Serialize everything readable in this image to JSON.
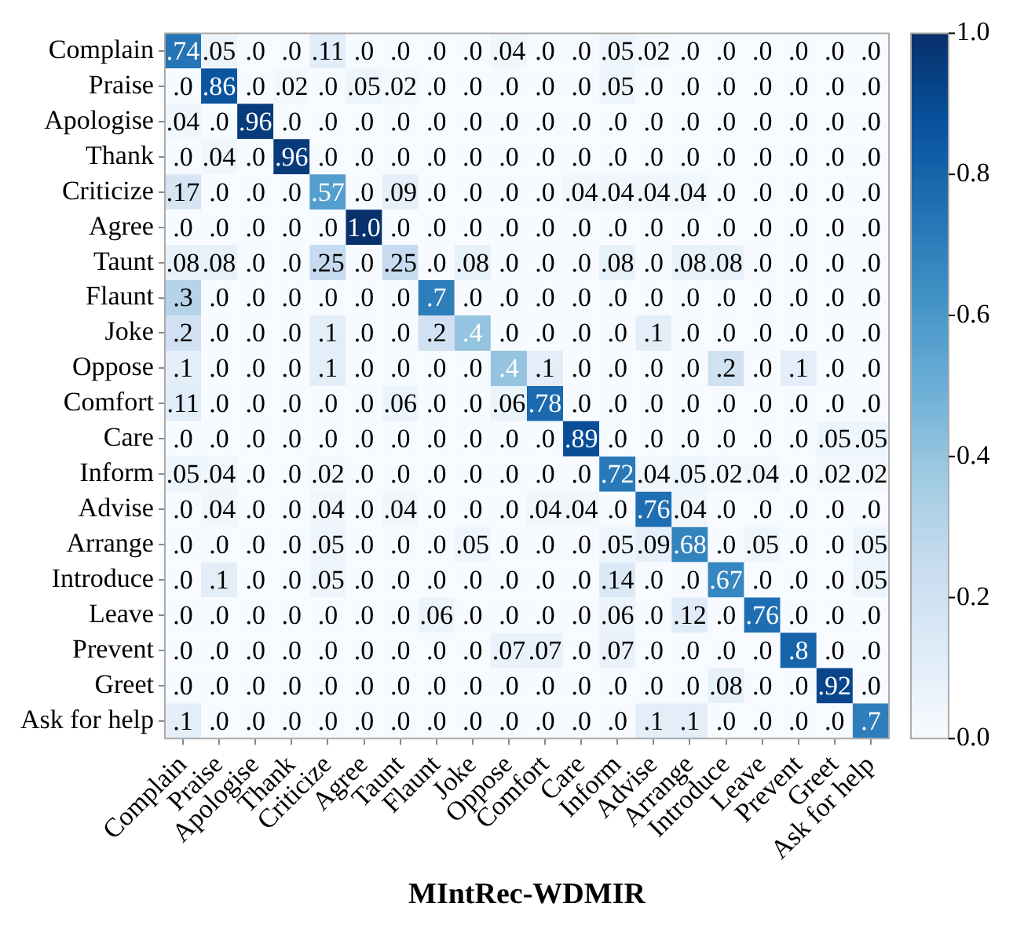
{
  "chart_data": {
    "type": "heatmap",
    "xlabel": "MIntRec-WDMIR",
    "categories": [
      "Complain",
      "Praise",
      "Apologise",
      "Thank",
      "Criticize",
      "Agree",
      "Taunt",
      "Flaunt",
      "Joke",
      "Oppose",
      "Comfort",
      "Care",
      "Inform",
      "Advise",
      "Arrange",
      "Introduce",
      "Leave",
      "Prevent",
      "Greet",
      "Ask for help"
    ],
    "y_categories": [
      "Complain",
      "Praise",
      "Apologise",
      "Thank",
      "Criticize",
      "Agree",
      "Taunt",
      "Flaunt",
      "Joke",
      "Oppose",
      "Comfort",
      "Care",
      "Inform",
      "Advise",
      "Arrange",
      "Introduce",
      "Leave",
      "Prevent",
      "Greet",
      "Ask for help"
    ],
    "cells": [
      [
        0.74,
        0.05,
        0,
        0,
        0.11,
        0,
        0,
        0,
        0,
        0.04,
        0,
        0,
        0.05,
        0.02,
        0,
        0,
        0,
        0,
        0,
        0
      ],
      [
        0,
        0.86,
        0,
        0.02,
        0,
        0.05,
        0.02,
        0,
        0,
        0,
        0,
        0,
        0.05,
        0,
        0,
        0,
        0,
        0,
        0,
        0
      ],
      [
        0.04,
        0,
        0.96,
        0,
        0,
        0,
        0,
        0,
        0,
        0,
        0,
        0,
        0,
        0,
        0,
        0,
        0,
        0,
        0,
        0
      ],
      [
        0,
        0.04,
        0,
        0.96,
        0,
        0,
        0,
        0,
        0,
        0,
        0,
        0,
        0,
        0,
        0,
        0,
        0,
        0,
        0,
        0
      ],
      [
        0.17,
        0,
        0,
        0,
        0.57,
        0,
        0.09,
        0,
        0,
        0,
        0,
        0.04,
        0.04,
        0.04,
        0.04,
        0,
        0,
        0,
        0,
        0
      ],
      [
        0,
        0,
        0,
        0,
        0,
        1.0,
        0,
        0,
        0,
        0,
        0,
        0,
        0,
        0,
        0,
        0,
        0,
        0,
        0,
        0
      ],
      [
        0.08,
        0.08,
        0,
        0,
        0.25,
        0,
        0.25,
        0,
        0.08,
        0,
        0,
        0,
        0.08,
        0,
        0.08,
        0.08,
        0,
        0,
        0,
        0
      ],
      [
        0.3,
        0,
        0,
        0,
        0,
        0,
        0,
        0.7,
        0,
        0,
        0,
        0,
        0,
        0,
        0,
        0,
        0,
        0,
        0,
        0
      ],
      [
        0.2,
        0,
        0,
        0,
        0.1,
        0,
        0,
        0.2,
        0.4,
        0,
        0,
        0,
        0,
        0.1,
        0,
        0,
        0,
        0,
        0,
        0
      ],
      [
        0.1,
        0,
        0,
        0,
        0.1,
        0,
        0,
        0,
        0,
        0.4,
        0.1,
        0,
        0,
        0,
        0,
        0.2,
        0,
        0.1,
        0,
        0
      ],
      [
        0.11,
        0,
        0,
        0,
        0,
        0,
        0.06,
        0,
        0,
        0.06,
        0.78,
        0,
        0,
        0,
        0,
        0,
        0,
        0,
        0,
        0
      ],
      [
        0,
        0,
        0,
        0,
        0,
        0,
        0,
        0,
        0,
        0,
        0,
        0.89,
        0,
        0,
        0,
        0,
        0,
        0,
        0.05,
        0.05
      ],
      [
        0.05,
        0.04,
        0,
        0,
        0.02,
        0,
        0,
        0,
        0,
        0,
        0,
        0,
        0.72,
        0.04,
        0.05,
        0.02,
        0.04,
        0,
        0.02,
        0.02
      ],
      [
        0,
        0.04,
        0,
        0,
        0.04,
        0,
        0.04,
        0,
        0,
        0,
        0.04,
        0.04,
        0,
        0.76,
        0.04,
        0,
        0,
        0,
        0,
        0
      ],
      [
        0,
        0,
        0,
        0,
        0.05,
        0,
        0,
        0,
        0.05,
        0,
        0,
        0,
        0.05,
        0.09,
        0.68,
        0,
        0.05,
        0,
        0,
        0.05
      ],
      [
        0,
        0.1,
        0,
        0,
        0.05,
        0,
        0,
        0,
        0,
        0,
        0,
        0,
        0.14,
        0,
        0,
        0.67,
        0,
        0,
        0,
        0.05
      ],
      [
        0,
        0,
        0,
        0,
        0,
        0,
        0,
        0.06,
        0,
        0,
        0,
        0,
        0.06,
        0,
        0.12,
        0,
        0.76,
        0,
        0,
        0
      ],
      [
        0,
        0,
        0,
        0,
        0,
        0,
        0,
        0,
        0,
        0.07,
        0.07,
        0,
        0.07,
        0,
        0,
        0,
        0,
        0.8,
        0,
        0
      ],
      [
        0,
        0,
        0,
        0,
        0,
        0,
        0,
        0,
        0,
        0,
        0,
        0,
        0,
        0,
        0,
        0.08,
        0,
        0,
        0.92,
        0
      ],
      [
        0.1,
        0,
        0,
        0,
        0,
        0,
        0,
        0,
        0,
        0,
        0,
        0,
        0,
        0.1,
        0.1,
        0,
        0,
        0,
        0,
        0.7
      ]
    ],
    "cell_labels": [
      [
        ".74",
        ".05",
        ".0",
        ".0",
        ".11",
        ".0",
        ".0",
        ".0",
        ".0",
        ".04",
        ".0",
        ".0",
        ".05",
        ".02",
        ".0",
        ".0",
        ".0",
        ".0",
        ".0",
        ".0"
      ],
      [
        ".0",
        ".86",
        ".0",
        ".02",
        ".0",
        ".05",
        ".02",
        ".0",
        ".0",
        ".0",
        ".0",
        ".0",
        ".05",
        ".0",
        ".0",
        ".0",
        ".0",
        ".0",
        ".0",
        ".0"
      ],
      [
        ".04",
        ".0",
        ".96",
        ".0",
        ".0",
        ".0",
        ".0",
        ".0",
        ".0",
        ".0",
        ".0",
        ".0",
        ".0",
        ".0",
        ".0",
        ".0",
        ".0",
        ".0",
        ".0",
        ".0"
      ],
      [
        ".0",
        ".04",
        ".0",
        ".96",
        ".0",
        ".0",
        ".0",
        ".0",
        ".0",
        ".0",
        ".0",
        ".0",
        ".0",
        ".0",
        ".0",
        ".0",
        ".0",
        ".0",
        ".0",
        ".0"
      ],
      [
        ".17",
        ".0",
        ".0",
        ".0",
        ".57",
        ".0",
        ".09",
        ".0",
        ".0",
        ".0",
        ".0",
        ".04",
        ".04",
        ".04",
        ".04",
        ".0",
        ".0",
        ".0",
        ".0",
        ".0"
      ],
      [
        ".0",
        ".0",
        ".0",
        ".0",
        ".0",
        "1.0",
        ".0",
        ".0",
        ".0",
        ".0",
        ".0",
        ".0",
        ".0",
        ".0",
        ".0",
        ".0",
        ".0",
        ".0",
        ".0",
        ".0"
      ],
      [
        ".08",
        ".08",
        ".0",
        ".0",
        ".25",
        ".0",
        ".25",
        ".0",
        ".08",
        ".0",
        ".0",
        ".0",
        ".08",
        ".0",
        ".08",
        ".08",
        ".0",
        ".0",
        ".0",
        ".0"
      ],
      [
        ".3",
        ".0",
        ".0",
        ".0",
        ".0",
        ".0",
        ".0",
        ".7",
        ".0",
        ".0",
        ".0",
        ".0",
        ".0",
        ".0",
        ".0",
        ".0",
        ".0",
        ".0",
        ".0",
        ".0"
      ],
      [
        ".2",
        ".0",
        ".0",
        ".0",
        ".1",
        ".0",
        ".0",
        ".2",
        ".4",
        ".0",
        ".0",
        ".0",
        ".0",
        ".1",
        ".0",
        ".0",
        ".0",
        ".0",
        ".0",
        ".0"
      ],
      [
        ".1",
        ".0",
        ".0",
        ".0",
        ".1",
        ".0",
        ".0",
        ".0",
        ".0",
        ".4",
        ".1",
        ".0",
        ".0",
        ".0",
        ".0",
        ".2",
        ".0",
        ".1",
        ".0",
        ".0"
      ],
      [
        ".11",
        ".0",
        ".0",
        ".0",
        ".0",
        ".0",
        ".06",
        ".0",
        ".0",
        ".06",
        ".78",
        ".0",
        ".0",
        ".0",
        ".0",
        ".0",
        ".0",
        ".0",
        ".0",
        ".0"
      ],
      [
        ".0",
        ".0",
        ".0",
        ".0",
        ".0",
        ".0",
        ".0",
        ".0",
        ".0",
        ".0",
        ".0",
        ".89",
        ".0",
        ".0",
        ".0",
        ".0",
        ".0",
        ".0",
        ".05",
        ".05"
      ],
      [
        ".05",
        ".04",
        ".0",
        ".0",
        ".02",
        ".0",
        ".0",
        ".0",
        ".0",
        ".0",
        ".0",
        ".0",
        ".72",
        ".04",
        ".05",
        ".02",
        ".04",
        ".0",
        ".02",
        ".02"
      ],
      [
        ".0",
        ".04",
        ".0",
        ".0",
        ".04",
        ".0",
        ".04",
        ".0",
        ".0",
        ".0",
        ".04",
        ".04",
        ".0",
        ".76",
        ".04",
        ".0",
        ".0",
        ".0",
        ".0",
        ".0"
      ],
      [
        ".0",
        ".0",
        ".0",
        ".0",
        ".05",
        ".0",
        ".0",
        ".0",
        ".05",
        ".0",
        ".0",
        ".0",
        ".05",
        ".09",
        ".68",
        ".0",
        ".05",
        ".0",
        ".0",
        ".05"
      ],
      [
        ".0",
        ".1",
        ".0",
        ".0",
        ".05",
        ".0",
        ".0",
        ".0",
        ".0",
        ".0",
        ".0",
        ".0",
        ".14",
        ".0",
        ".0",
        ".67",
        ".0",
        ".0",
        ".0",
        ".05"
      ],
      [
        ".0",
        ".0",
        ".0",
        ".0",
        ".0",
        ".0",
        ".0",
        ".06",
        ".0",
        ".0",
        ".0",
        ".0",
        ".06",
        ".0",
        ".12",
        ".0",
        ".76",
        ".0",
        ".0",
        ".0"
      ],
      [
        ".0",
        ".0",
        ".0",
        ".0",
        ".0",
        ".0",
        ".0",
        ".0",
        ".0",
        ".07",
        ".07",
        ".0",
        ".07",
        ".0",
        ".0",
        ".0",
        ".0",
        ".8",
        ".0",
        ".0"
      ],
      [
        ".0",
        ".0",
        ".0",
        ".0",
        ".0",
        ".0",
        ".0",
        ".0",
        ".0",
        ".0",
        ".0",
        ".0",
        ".0",
        ".0",
        ".0",
        ".08",
        ".0",
        ".0",
        ".92",
        ".0"
      ],
      [
        ".1",
        ".0",
        ".0",
        ".0",
        ".0",
        ".0",
        ".0",
        ".0",
        ".0",
        ".0",
        ".0",
        ".0",
        ".0",
        ".1",
        ".1",
        ".0",
        ".0",
        ".0",
        ".0",
        ".7"
      ]
    ],
    "clim": [
      0,
      1
    ],
    "cticks": [
      {
        "value": 0,
        "label": "0.0"
      },
      {
        "value": 0.2,
        "label": "0.2"
      },
      {
        "value": 0.4,
        "label": "0.4"
      },
      {
        "value": 0.6,
        "label": "0.6"
      },
      {
        "value": 0.8,
        "label": "0.8"
      },
      {
        "value": 1,
        "label": "1.0"
      }
    ],
    "grid": false,
    "legend": false
  }
}
